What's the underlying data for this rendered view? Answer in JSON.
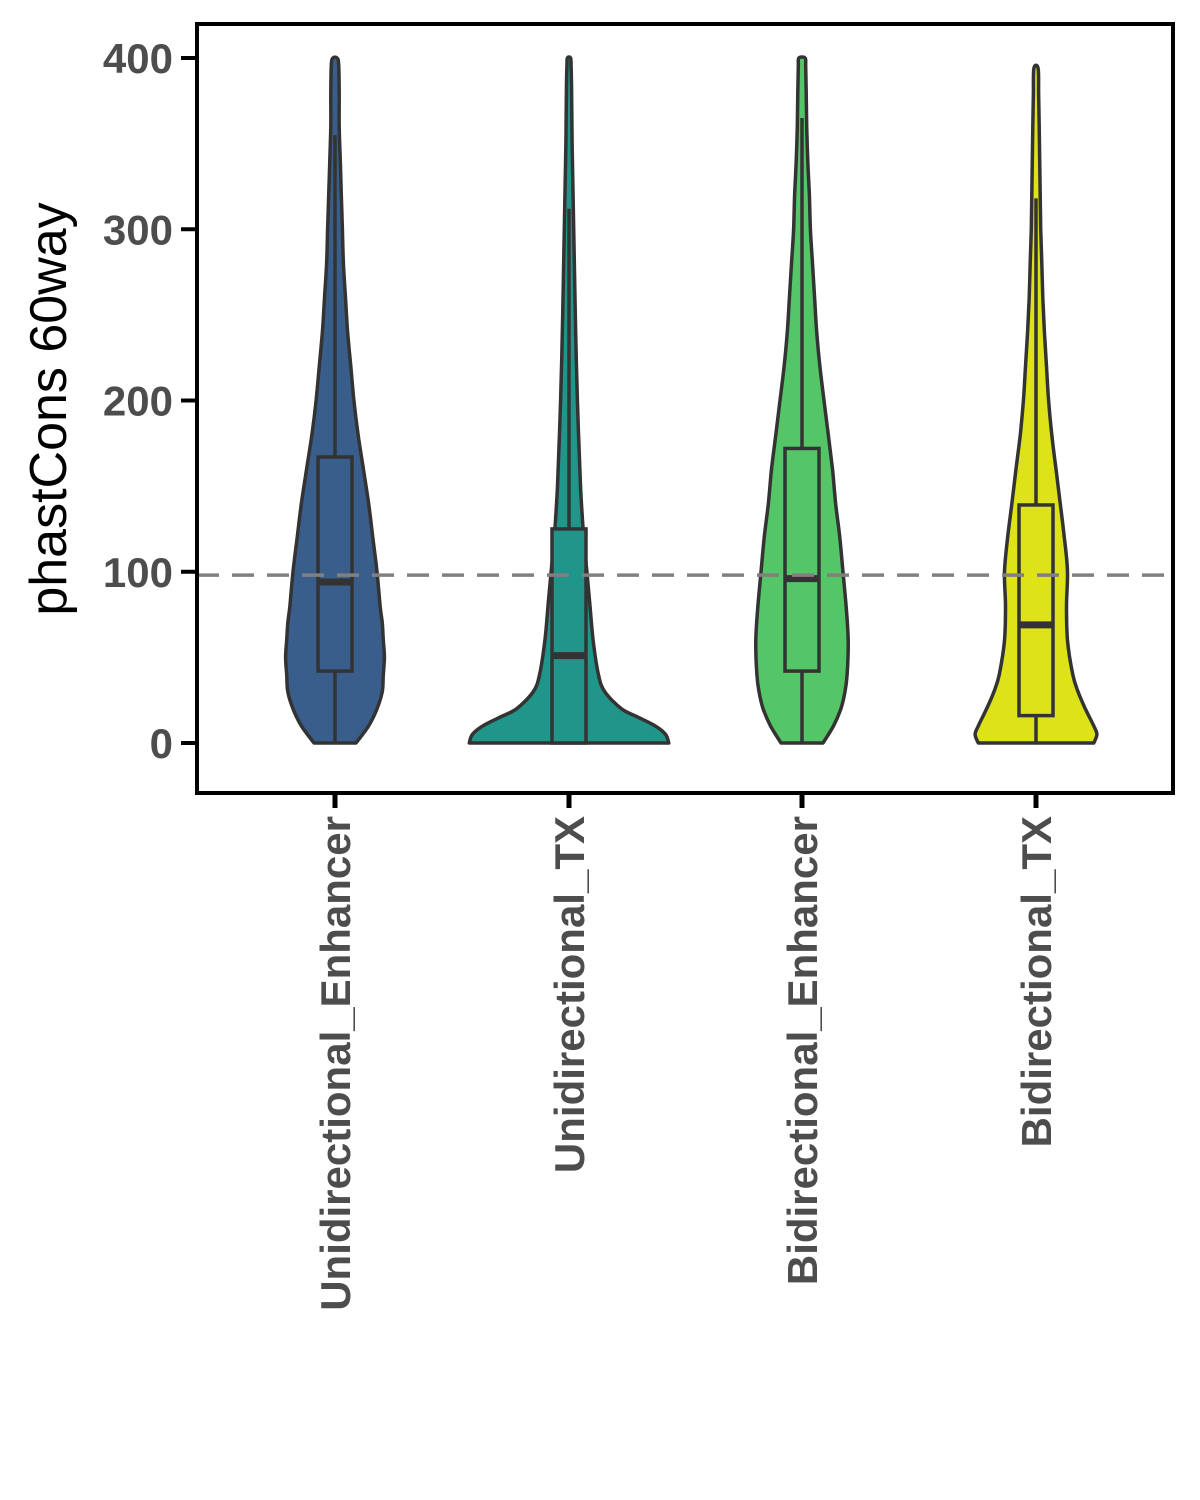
{
  "chart_data": {
    "type": "violin",
    "title": "",
    "xlabel": "",
    "ylabel": "phastCons 60way",
    "ylim": [
      -29,
      420
    ],
    "yticks": [
      0,
      100,
      200,
      300,
      400
    ],
    "ytick_labels": [
      "0",
      "100",
      "200",
      "300",
      "400"
    ],
    "reference_line": {
      "y": 98,
      "style": "dashed",
      "color": "#808080"
    },
    "grid": false,
    "legend": "none",
    "categories": [
      "Unidirectional_Enhancer",
      "Unidirectional_TX",
      "Bidirectional_Enhancer",
      "Bidirectional_TX"
    ],
    "colors": [
      "#3a5e8c",
      "#20968b",
      "#55c667",
      "#dde318"
    ],
    "boxes": [
      {
        "whisker_low": 0,
        "q1": 42,
        "median": 94,
        "q3": 167,
        "whisker_high": 355
      },
      {
        "whisker_low": 0,
        "q1": 0,
        "median": 51,
        "q3": 125,
        "whisker_high": 312
      },
      {
        "whisker_low": 0,
        "q1": 42,
        "median": 96,
        "q3": 172,
        "whisker_high": 365
      },
      {
        "whisker_low": 0,
        "q1": 16,
        "median": 69,
        "q3": 139,
        "whisker_high": 318
      }
    ],
    "violin_max": [
      400,
      400,
      400,
      396
    ],
    "density_profiles": [
      [
        [
          0,
          0.2
        ],
        [
          10,
          0.32
        ],
        [
          20,
          0.4
        ],
        [
          30,
          0.45
        ],
        [
          40,
          0.46
        ],
        [
          50,
          0.47
        ],
        [
          60,
          0.46
        ],
        [
          70,
          0.45
        ],
        [
          80,
          0.43
        ],
        [
          100,
          0.4
        ],
        [
          120,
          0.36
        ],
        [
          140,
          0.32
        ],
        [
          160,
          0.27
        ],
        [
          180,
          0.22
        ],
        [
          200,
          0.18
        ],
        [
          220,
          0.15
        ],
        [
          240,
          0.12
        ],
        [
          260,
          0.1
        ],
        [
          280,
          0.08
        ],
        [
          300,
          0.07
        ],
        [
          320,
          0.06
        ],
        [
          340,
          0.05
        ],
        [
          360,
          0.04
        ],
        [
          380,
          0.04
        ],
        [
          396,
          0.035
        ],
        [
          400,
          0.02
        ]
      ],
      [
        [
          0,
          0.95
        ],
        [
          5,
          0.92
        ],
        [
          10,
          0.82
        ],
        [
          15,
          0.66
        ],
        [
          20,
          0.5
        ],
        [
          30,
          0.34
        ],
        [
          40,
          0.28
        ],
        [
          60,
          0.23
        ],
        [
          80,
          0.2
        ],
        [
          100,
          0.17
        ],
        [
          120,
          0.14
        ],
        [
          150,
          0.11
        ],
        [
          200,
          0.08
        ],
        [
          250,
          0.06
        ],
        [
          300,
          0.045
        ],
        [
          350,
          0.03
        ],
        [
          380,
          0.025
        ],
        [
          395,
          0.02
        ],
        [
          400,
          0.015
        ]
      ],
      [
        [
          0,
          0.2
        ],
        [
          10,
          0.3
        ],
        [
          20,
          0.37
        ],
        [
          30,
          0.41
        ],
        [
          40,
          0.43
        ],
        [
          60,
          0.44
        ],
        [
          80,
          0.42
        ],
        [
          100,
          0.39
        ],
        [
          120,
          0.36
        ],
        [
          140,
          0.32
        ],
        [
          160,
          0.29
        ],
        [
          180,
          0.25
        ],
        [
          200,
          0.21
        ],
        [
          220,
          0.17
        ],
        [
          240,
          0.14
        ],
        [
          260,
          0.12
        ],
        [
          280,
          0.1
        ],
        [
          300,
          0.08
        ],
        [
          320,
          0.07
        ],
        [
          340,
          0.055
        ],
        [
          360,
          0.045
        ],
        [
          380,
          0.04
        ],
        [
          395,
          0.035
        ],
        [
          400,
          0.03
        ]
      ],
      [
        [
          0,
          0.55
        ],
        [
          5,
          0.58
        ],
        [
          10,
          0.55
        ],
        [
          20,
          0.47
        ],
        [
          30,
          0.4
        ],
        [
          40,
          0.35
        ],
        [
          60,
          0.3
        ],
        [
          80,
          0.29
        ],
        [
          100,
          0.3
        ],
        [
          120,
          0.27
        ],
        [
          140,
          0.23
        ],
        [
          160,
          0.19
        ],
        [
          180,
          0.15
        ],
        [
          200,
          0.12
        ],
        [
          220,
          0.1
        ],
        [
          240,
          0.08
        ],
        [
          260,
          0.065
        ],
        [
          280,
          0.055
        ],
        [
          300,
          0.045
        ],
        [
          320,
          0.04
        ],
        [
          340,
          0.035
        ],
        [
          360,
          0.03
        ],
        [
          380,
          0.025
        ],
        [
          394,
          0.02
        ]
      ]
    ]
  }
}
